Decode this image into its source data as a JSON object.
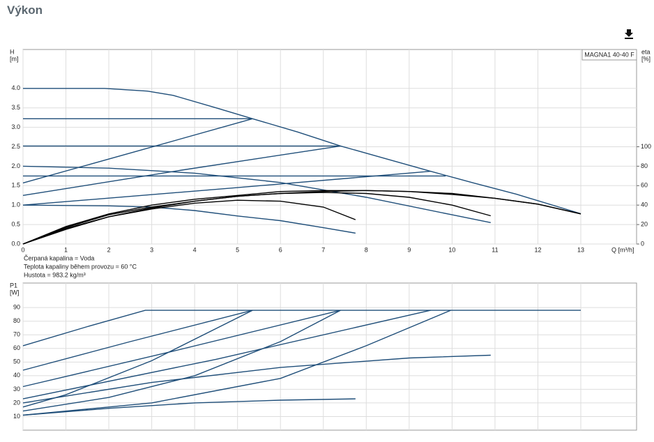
{
  "header": {
    "title": "Výkon"
  },
  "chart_data": [
    {
      "type": "line",
      "y_label": "H",
      "y_unit": "[m]",
      "y2_label": "eta",
      "y2_unit": "[%]",
      "x_label": "Q [m³/h]",
      "legend": "MAGNA1 40-40 F",
      "notes": [
        "Čerpaná kapalina = Voda",
        "Teplota kapaliny během provozu = 60 °C",
        "Hustota = 983.2 kg/m³"
      ],
      "xlim": [
        0,
        14.3
      ],
      "xticks": [
        0,
        1,
        2,
        3,
        4,
        5,
        6,
        7,
        8,
        9,
        10,
        11,
        12,
        13
      ],
      "ylim": [
        0,
        5
      ],
      "yticks": [
        {
          "value": 0,
          "label": "0.0"
        },
        {
          "value": 0.5,
          "label": "0.5"
        },
        {
          "value": 1,
          "label": "1.0"
        },
        {
          "value": 1.5,
          "label": "1.5"
        },
        {
          "value": 2,
          "label": "2.0"
        },
        {
          "value": 2.5,
          "label": "2.5"
        },
        {
          "value": 3,
          "label": "3.0"
        },
        {
          "value": 3.5,
          "label": "3.5"
        },
        {
          "value": 4,
          "label": "4.0"
        }
      ],
      "y2lim": [
        0,
        200
      ],
      "y2ticks": [
        0,
        20,
        40,
        60,
        80,
        100
      ],
      "grid": true,
      "series": [
        {
          "color": "#1f4e79",
          "x": [
            0,
            1.9,
            2.9,
            3.5,
            4.5,
            5.35,
            6.4,
            7.4,
            8.5,
            9.5,
            10.5,
            11.5,
            13
          ],
          "values": [
            4.0,
            4.0,
            3.93,
            3.82,
            3.5,
            3.22,
            2.88,
            2.52,
            2.18,
            1.87,
            1.57,
            1.28,
            0.78
          ]
        },
        {
          "color": "#1f4e79",
          "x": [
            0,
            5.35
          ],
          "values": [
            3.22,
            3.22
          ]
        },
        {
          "color": "#1f4e79",
          "x": [
            0,
            7.4
          ],
          "values": [
            2.52,
            2.52
          ]
        },
        {
          "color": "#1f4e79",
          "x": [
            0,
            9.85
          ],
          "values": [
            1.75,
            1.75
          ]
        },
        {
          "color": "#1f4e79",
          "x": [
            0,
            2.7,
            5.35
          ],
          "values": [
            1.57,
            2.4,
            3.22
          ]
        },
        {
          "color": "#1f4e79",
          "x": [
            0,
            3.7,
            7.4
          ],
          "values": [
            1.25,
            1.9,
            2.52
          ]
        },
        {
          "color": "#1f4e79",
          "x": [
            0,
            5,
            9.5
          ],
          "values": [
            1.0,
            1.45,
            1.87
          ]
        },
        {
          "color": "#1f4e79",
          "x": [
            0,
            2,
            4,
            6,
            8,
            10,
            10.9
          ],
          "values": [
            2.0,
            1.95,
            1.82,
            1.58,
            1.2,
            0.75,
            0.55
          ]
        },
        {
          "color": "#1f4e79",
          "x": [
            0,
            2,
            3,
            4,
            5,
            6,
            7,
            7.75
          ],
          "values": [
            1.0,
            0.98,
            0.95,
            0.86,
            0.72,
            0.6,
            0.42,
            0.28
          ]
        },
        {
          "color": "#000000",
          "axis": "y2",
          "x": [
            0,
            1,
            2,
            3,
            4,
            5,
            6,
            7,
            8,
            9,
            10,
            11,
            12,
            13
          ],
          "values": [
            0,
            18,
            31,
            40,
            46,
            50,
            54,
            55,
            55,
            54,
            52,
            47,
            41,
            31
          ]
        },
        {
          "color": "#000000",
          "axis": "y2",
          "x": [
            0,
            1,
            2,
            3,
            4,
            5,
            6,
            7,
            8,
            9,
            10,
            11,
            12,
            13
          ],
          "values": [
            0,
            15,
            28,
            37,
            44,
            49,
            52,
            54,
            55,
            54,
            51,
            47,
            41,
            31
          ]
        },
        {
          "color": "#000000",
          "axis": "y2",
          "x": [
            0,
            1,
            2,
            3,
            4,
            5,
            6,
            7,
            8,
            9,
            10,
            10.9
          ],
          "values": [
            0,
            17,
            30,
            38,
            44,
            49,
            52,
            53,
            52,
            48,
            40,
            29
          ]
        },
        {
          "color": "#000000",
          "axis": "y2",
          "x": [
            0,
            1,
            2,
            3,
            4,
            5,
            6,
            7,
            7.75
          ],
          "values": [
            0,
            16,
            28,
            36,
            42,
            45,
            44,
            38,
            25
          ]
        }
      ]
    },
    {
      "type": "line",
      "y_label": "P1",
      "y_unit": "[W]",
      "xlim": [
        0,
        14.3
      ],
      "ylim": [
        0,
        108
      ],
      "yticks": [
        10,
        20,
        30,
        40,
        50,
        60,
        70,
        80,
        90
      ],
      "grid": true,
      "series": [
        {
          "color": "#1f4e79",
          "x": [
            0,
            1.5,
            2.85,
            13
          ],
          "values": [
            62,
            76,
            88,
            88
          ]
        },
        {
          "color": "#1f4e79",
          "x": [
            0,
            2.5,
            5.35
          ],
          "values": [
            44,
            65,
            88
          ]
        },
        {
          "color": "#1f4e79",
          "x": [
            0,
            3.5,
            7.4
          ],
          "values": [
            32,
            58,
            88
          ]
        },
        {
          "color": "#1f4e79",
          "x": [
            0,
            4.5,
            9.5
          ],
          "values": [
            23,
            52,
            88
          ]
        },
        {
          "color": "#1f4e79",
          "x": [
            0,
            1,
            3,
            5.35
          ],
          "values": [
            17,
            26,
            51,
            88
          ]
        },
        {
          "color": "#1f4e79",
          "x": [
            0,
            2,
            4,
            6,
            7.4
          ],
          "values": [
            14,
            24,
            40,
            65,
            88
          ]
        },
        {
          "color": "#1f4e79",
          "x": [
            0,
            3,
            6,
            8,
            9.97
          ],
          "values": [
            11,
            20,
            38,
            62,
            88
          ]
        },
        {
          "color": "#1f4e79",
          "x": [
            0,
            3,
            6,
            9,
            10.9
          ],
          "values": [
            20,
            35,
            46,
            53,
            55
          ]
        },
        {
          "color": "#1f4e79",
          "x": [
            0,
            2,
            4,
            6,
            7.75
          ],
          "values": [
            11,
            16,
            20,
            22,
            23
          ]
        }
      ]
    }
  ]
}
